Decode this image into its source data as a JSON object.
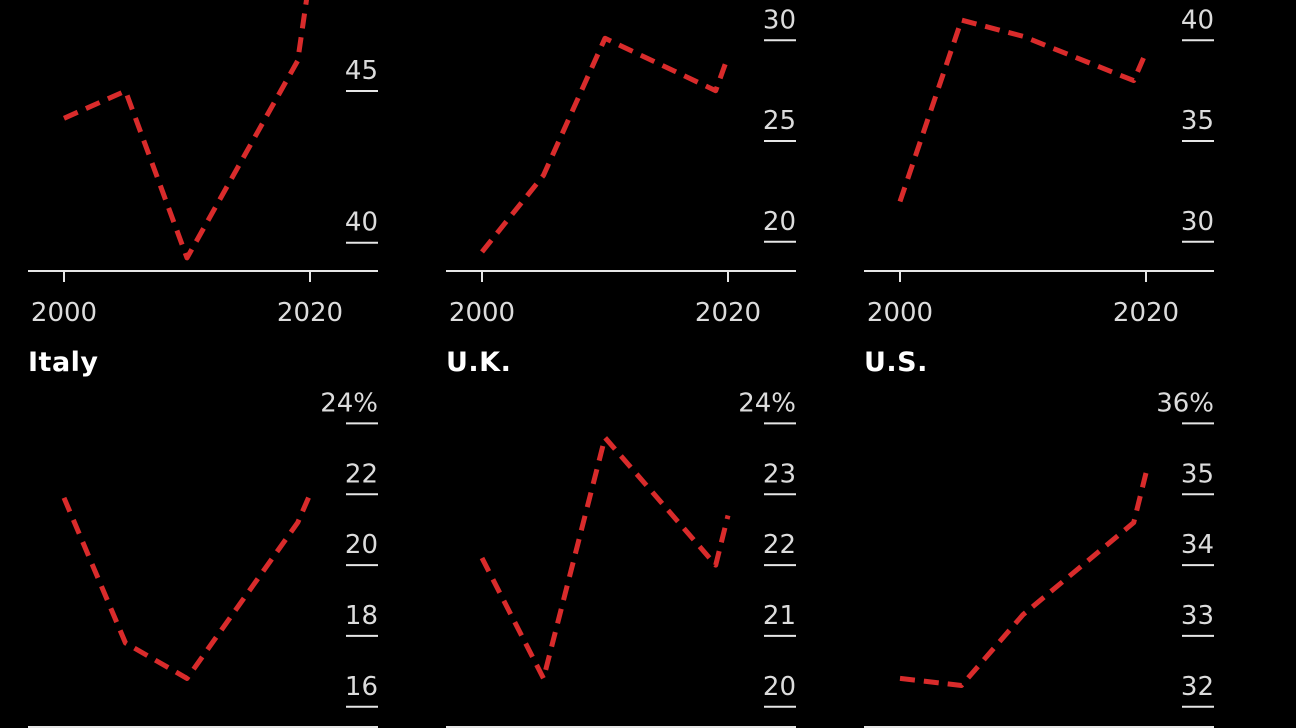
{
  "chart_data": [
    {
      "type": "line",
      "title": "",
      "x": [
        2000,
        2005,
        2010,
        2019,
        2020
      ],
      "values": [
        44.1,
        45.0,
        39.5,
        46.0,
        48.8
      ],
      "ylim": [
        39.1,
        48.0
      ],
      "yticks": [
        40,
        45
      ],
      "ytick_labels": [
        "40",
        "45"
      ],
      "xticks": [
        2000,
        2020
      ],
      "xtick_labels": [
        "2000",
        "2020"
      ]
    },
    {
      "type": "line",
      "title": "",
      "x": [
        2000,
        2005,
        2010,
        2019,
        2020
      ],
      "values": [
        19.5,
        23.3,
        30.1,
        27.5,
        29.2
      ],
      "ylim": [
        18.6,
        32.0
      ],
      "yticks": [
        20,
        25,
        30
      ],
      "ytick_labels": [
        "20",
        "25",
        "30"
      ],
      "xticks": [
        2000,
        2020
      ],
      "xtick_labels": [
        "2000",
        "2020"
      ]
    },
    {
      "type": "line",
      "title": "",
      "x": [
        2000,
        2005,
        2010,
        2019,
        2020
      ],
      "values": [
        32.0,
        41.0,
        40.2,
        38.0,
        39.4
      ],
      "ylim": [
        28.6,
        42.0
      ],
      "yticks": [
        30,
        35,
        40
      ],
      "ytick_labels": [
        "30",
        "35",
        "40"
      ],
      "xticks": [
        2000,
        2020
      ],
      "xtick_labels": [
        "2000",
        "2020"
      ]
    },
    {
      "type": "line",
      "title": "Italy",
      "x": [
        2000,
        2005,
        2010,
        2019,
        2020
      ],
      "values": [
        21.9,
        17.8,
        16.8,
        21.2,
        22.0
      ],
      "ylim": [
        15.4,
        25.0
      ],
      "yticks": [
        16,
        18,
        20,
        22,
        24
      ],
      "ytick_labels": [
        "16",
        "18",
        "20",
        "22",
        "24%"
      ],
      "xticks": [
        2000,
        2020
      ],
      "xtick_labels": [
        "2000",
        "2020"
      ]
    },
    {
      "type": "line",
      "title": "U.K.",
      "x": [
        2000,
        2005,
        2010,
        2019,
        2020
      ],
      "values": [
        22.1,
        20.4,
        23.8,
        22.0,
        22.7
      ],
      "ylim": [
        19.7,
        24.5
      ],
      "yticks": [
        20,
        21,
        22,
        23,
        24
      ],
      "ytick_labels": [
        "20",
        "21",
        "22",
        "23",
        "24%"
      ],
      "xticks": [
        2000,
        2020
      ],
      "xtick_labels": [
        "2000",
        "2020"
      ]
    },
    {
      "type": "line",
      "title": "U.S.",
      "x": [
        2000,
        2005,
        2010,
        2019,
        2020
      ],
      "values": [
        32.4,
        32.3,
        33.3,
        34.6,
        35.3
      ],
      "ylim": [
        31.7,
        36.5
      ],
      "yticks": [
        32,
        33,
        34,
        35,
        36
      ],
      "ytick_labels": [
        "32",
        "33",
        "34",
        "35",
        "36%"
      ],
      "xticks": [
        2000,
        2020
      ],
      "xtick_labels": [
        "2000",
        "2020"
      ]
    }
  ],
  "colors": {
    "line": "#d92b2b",
    "text": "#ffffff",
    "tick_label": "#dcdcdc",
    "axis": "#e6e6e6",
    "background": "#000000"
  }
}
